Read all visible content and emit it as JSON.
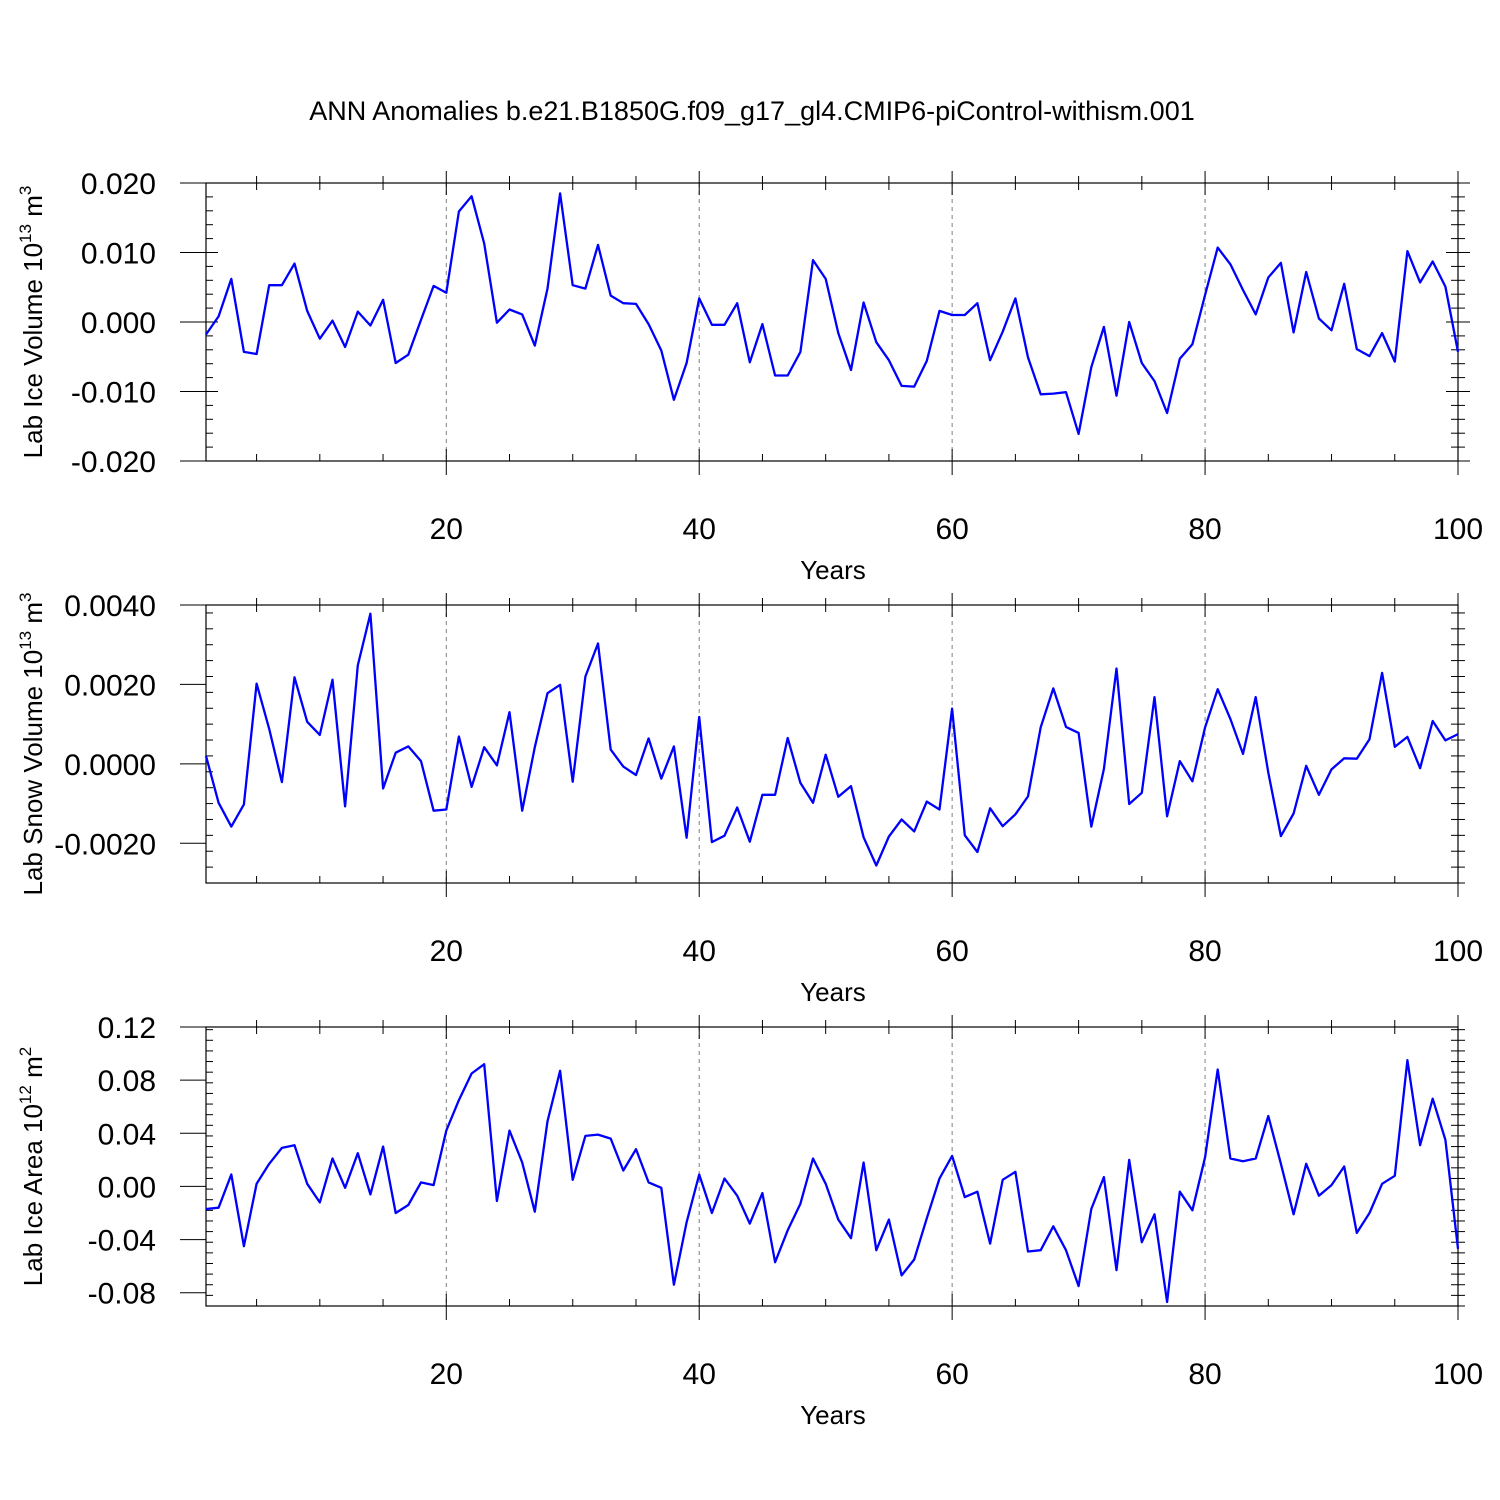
{
  "title": "ANN Anomalies b.e21.B1850G.f09_g17_gl4.CMIP6-piControl-withism.001",
  "colors": {
    "line": "#0000ff",
    "axes": "#000000",
    "grid": "#808080"
  },
  "chart_data": [
    {
      "type": "line",
      "ylabel": "Lab Ice Volume 10",
      "ylabel_exp": "13",
      "ylabel_unit": " m",
      "ylabel_unit_exp": "3",
      "xlabel": "Years",
      "xlim": [
        1,
        100
      ],
      "ylim": [
        -0.02,
        0.02
      ],
      "xticks": [
        20,
        40,
        60,
        80,
        100
      ],
      "yticks": [
        -0.02,
        -0.01,
        0.0,
        0.01,
        0.02
      ],
      "yticklabels": [
        "-0.020",
        "-0.010",
        "0.000",
        "0.010",
        "0.020"
      ],
      "grid": "vertical dashed at 20, 40, 60, 80",
      "x_start": 1,
      "values": [
        -0.0018,
        0.0008,
        0.0062,
        -0.0043,
        -0.0046,
        0.0053,
        0.0053,
        0.0084,
        0.0016,
        -0.0024,
        0.0002,
        -0.0036,
        0.0015,
        -0.0005,
        0.0032,
        -0.0059,
        -0.0047,
        0.0003,
        0.0052,
        0.0042,
        0.0159,
        0.0181,
        0.0113,
        -0.0001,
        0.0018,
        0.0011,
        -0.0034,
        0.0048,
        0.0185,
        0.0053,
        0.0048,
        0.0111,
        0.0038,
        0.0027,
        0.0026,
        -0.0003,
        -0.0041,
        -0.0112,
        -0.0059,
        0.0034,
        -0.0004,
        -0.0004,
        0.0027,
        -0.0058,
        -0.0003,
        -0.0077,
        -0.0077,
        -0.0043,
        0.0089,
        0.0062,
        -0.0016,
        -0.0069,
        0.0028,
        -0.0029,
        -0.0055,
        -0.0092,
        -0.0093,
        -0.0056,
        0.0016,
        0.001,
        0.001,
        0.0027,
        -0.0055,
        -0.0014,
        0.0034,
        -0.0051,
        -0.0104,
        -0.0103,
        -0.0101,
        -0.0161,
        -0.0065,
        -0.0007,
        -0.0106,
        0.0,
        -0.0059,
        -0.0085,
        -0.0131,
        -0.0053,
        -0.0032,
        0.0039,
        0.0107,
        0.0083,
        0.0046,
        0.0011,
        0.0064,
        0.0085,
        -0.0015,
        0.0072,
        0.0005,
        -0.0012,
        0.0055,
        -0.0039,
        -0.0049,
        -0.0016,
        -0.0057,
        0.0102,
        0.0057,
        0.0087,
        0.0051,
        -0.0043
      ]
    },
    {
      "type": "line",
      "ylabel": "Lab Snow Volume 10",
      "ylabel_exp": "13",
      "ylabel_unit": " m",
      "ylabel_unit_exp": "3",
      "xlabel": "Years",
      "xlim": [
        1,
        100
      ],
      "ylim": [
        -0.003,
        0.004
      ],
      "xticks": [
        20,
        40,
        60,
        80,
        100
      ],
      "yticks": [
        -0.002,
        0.0,
        0.002,
        0.004
      ],
      "yticklabels": [
        "-0.0020",
        "0.0000",
        "0.0020",
        "0.0040"
      ],
      "grid": "vertical dashed at 20, 40, 60, 80",
      "x_start": 1,
      "values": [
        0.0002,
        -0.00098,
        -0.00158,
        -0.00102,
        0.00202,
        0.00088,
        -0.00046,
        0.00218,
        0.00106,
        0.00073,
        0.00212,
        -0.00107,
        0.00248,
        0.00378,
        -0.00062,
        0.00028,
        0.00044,
        7e-05,
        -0.00118,
        -0.00115,
        0.00069,
        -0.00058,
        0.00042,
        -4e-05,
        0.0013,
        -0.00118,
        0.00042,
        0.00178,
        0.00199,
        -0.00045,
        0.0022,
        0.00303,
        0.00036,
        -7e-05,
        -0.00028,
        0.00064,
        -0.00037,
        0.00044,
        -0.00186,
        0.00118,
        -0.00197,
        -0.00181,
        -0.0011,
        -0.00196,
        -0.00078,
        -0.00078,
        0.00065,
        -0.00048,
        -0.00098,
        0.00023,
        -0.00083,
        -0.00056,
        -0.00185,
        -0.00256,
        -0.00183,
        -0.0014,
        -0.0017,
        -0.00095,
        -0.00115,
        0.00139,
        -0.0018,
        -0.00222,
        -0.00112,
        -0.00157,
        -0.00127,
        -0.00082,
        0.00092,
        0.0019,
        0.00093,
        0.00078,
        -0.00158,
        -0.00013,
        0.0024,
        -0.00101,
        -0.00073,
        0.00168,
        -0.00132,
        7e-05,
        -0.00044,
        0.00092,
        0.00188,
        0.00113,
        0.00025,
        0.00168,
        -0.00022,
        -0.00182,
        -0.00125,
        -5e-05,
        -0.00078,
        -0.00014,
        0.00014,
        0.00013,
        0.00062,
        0.00229,
        0.00043,
        0.00068,
        -0.00011,
        0.00108,
        0.00059,
        0.00075
      ]
    },
    {
      "type": "line",
      "ylabel": "Lab Ice Area 10",
      "ylabel_exp": "12",
      "ylabel_unit": " m",
      "ylabel_unit_exp": "2",
      "xlabel": "Years",
      "xlim": [
        1,
        100
      ],
      "ylim": [
        -0.09,
        0.12
      ],
      "xticks": [
        20,
        40,
        60,
        80,
        100
      ],
      "yticks": [
        -0.08,
        -0.04,
        0.0,
        0.04,
        0.08,
        0.12
      ],
      "yticklabels": [
        "-0.08",
        "-0.04",
        "0.00",
        "0.04",
        "0.08",
        "0.12"
      ],
      "grid": "vertical dashed at 20, 40, 60, 80",
      "x_start": 1,
      "values": [
        -0.017,
        -0.016,
        0.009,
        -0.045,
        0.002,
        0.017,
        0.029,
        0.031,
        0.002,
        -0.012,
        0.021,
        -0.001,
        0.025,
        -0.006,
        0.03,
        -0.02,
        -0.014,
        0.003,
        0.001,
        0.042,
        0.065,
        0.085,
        0.092,
        -0.011,
        0.042,
        0.018,
        -0.019,
        0.049,
        0.087,
        0.005,
        0.038,
        0.039,
        0.036,
        0.012,
        0.028,
        0.003,
        -0.001,
        -0.074,
        -0.027,
        0.009,
        -0.02,
        0.006,
        -0.007,
        -0.028,
        -0.005,
        -0.057,
        -0.033,
        -0.013,
        0.021,
        0.002,
        -0.025,
        -0.039,
        0.018,
        -0.048,
        -0.025,
        -0.067,
        -0.055,
        -0.024,
        0.006,
        0.023,
        -0.008,
        -0.004,
        -0.043,
        0.005,
        0.011,
        -0.049,
        -0.048,
        -0.03,
        -0.048,
        -0.075,
        -0.017,
        0.007,
        -0.063,
        0.02,
        -0.042,
        -0.021,
        -0.087,
        -0.004,
        -0.018,
        0.022,
        0.088,
        0.021,
        0.019,
        0.021,
        0.053,
        0.017,
        -0.021,
        0.017,
        -0.007,
        0.001,
        0.015,
        -0.035,
        -0.02,
        0.002,
        0.008,
        0.095,
        0.031,
        0.066,
        0.035,
        -0.047
      ]
    }
  ]
}
